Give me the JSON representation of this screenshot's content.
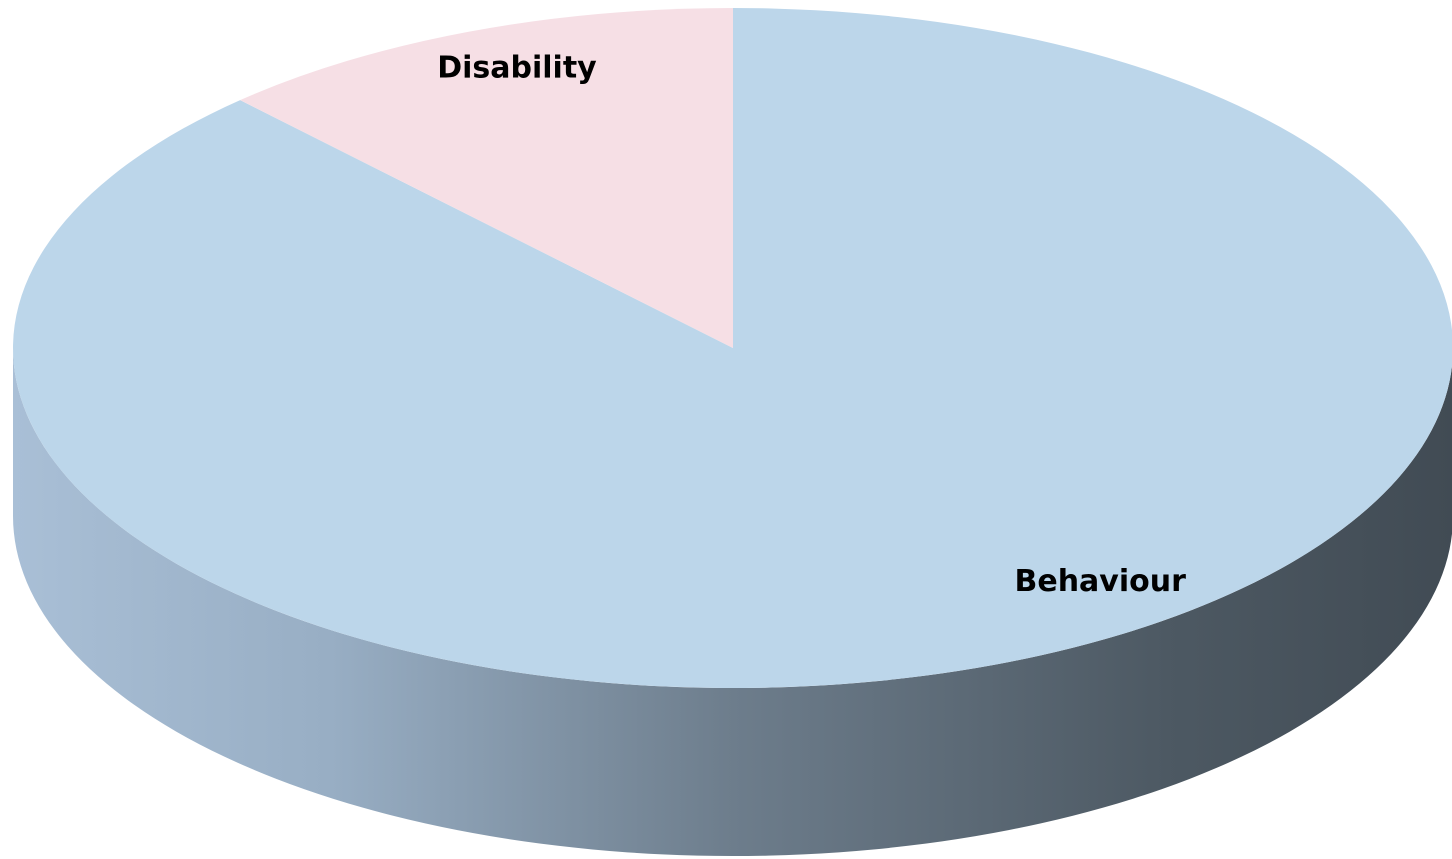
{
  "chart_data": {
    "type": "pie",
    "style": "3d",
    "title": "",
    "start_angle": "12 o'clock",
    "direction": "clockwise",
    "slices": [
      {
        "label": "Behaviour",
        "value": 88,
        "color": "#bcd6ea"
      },
      {
        "label": "Disability",
        "value": 12,
        "color": "#f6dfe5"
      }
    ],
    "side_color_light": "#a3b9d0",
    "side_color_dark": "#47525c",
    "legend": "none"
  }
}
